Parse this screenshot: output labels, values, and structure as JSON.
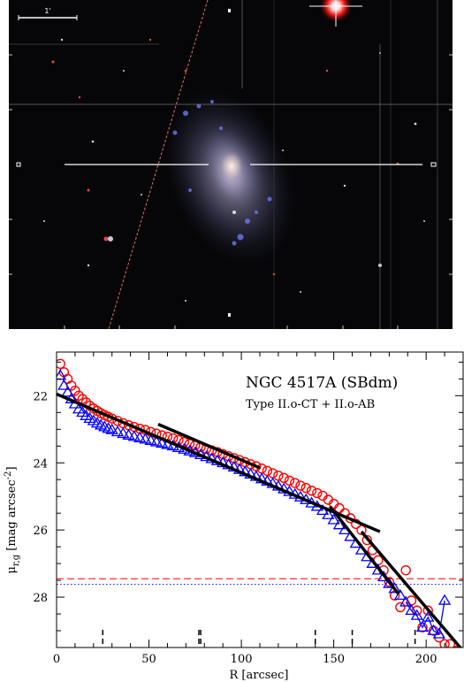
{
  "image_panel": {
    "scale_bar_label": "1'"
  },
  "chart_data": {
    "type": "scatter",
    "title": "NGC 4517A (SBdm)",
    "subtitle": "Type II.o-CT + II.o-AB",
    "xlabel": "R [arcsec]",
    "ylabel": "μ_r,g [mag arcsec^-2]",
    "ylabel_parts": {
      "main": "μ",
      "sub": "r,g",
      "bracket_open": "[mag arcsec",
      "sup": "-2",
      "bracket_close": "]"
    },
    "xlim": [
      0,
      220
    ],
    "ylim": [
      29.5,
      20.7
    ],
    "y_inverted": true,
    "grid": false,
    "x_ticks": [
      0,
      50,
      100,
      150,
      200
    ],
    "y_ticks": [
      22,
      24,
      26,
      28
    ],
    "colors": {
      "r_band": "#ff0000",
      "g_band": "#0000ff",
      "fit": "#000000"
    },
    "series": [
      {
        "marker": "circle",
        "color": "#ff0000",
        "x": [
          2,
          4,
          6,
          8,
          10,
          12,
          14,
          16,
          18,
          20,
          22,
          24,
          26,
          28,
          30,
          33,
          36,
          39,
          42,
          45,
          48,
          51,
          54,
          57,
          60,
          63,
          66,
          69,
          72,
          75,
          78,
          81,
          84,
          87,
          90,
          93,
          96,
          99,
          102,
          105,
          108,
          111,
          114,
          117,
          120,
          123,
          126,
          129,
          132,
          135,
          138,
          141,
          144,
          147,
          150,
          153,
          156,
          159,
          162,
          165,
          168,
          171,
          174,
          177,
          180,
          183,
          186,
          189,
          192,
          195,
          198,
          201,
          204,
          207,
          210,
          213,
          216
        ],
        "y": [
          21.05,
          21.3,
          21.5,
          21.7,
          21.85,
          22.0,
          22.1,
          22.2,
          22.3,
          22.38,
          22.45,
          22.52,
          22.58,
          22.63,
          22.68,
          22.75,
          22.82,
          22.88,
          22.93,
          22.98,
          23.02,
          23.08,
          23.13,
          23.18,
          23.22,
          23.27,
          23.32,
          23.38,
          23.43,
          23.48,
          23.53,
          23.58,
          23.63,
          23.68,
          23.74,
          23.8,
          23.86,
          23.92,
          23.98,
          24.04,
          24.1,
          24.17,
          24.24,
          24.31,
          24.38,
          24.45,
          24.53,
          24.6,
          24.68,
          24.75,
          24.83,
          24.9,
          24.98,
          25.1,
          25.22,
          25.35,
          25.5,
          25.65,
          25.82,
          26.0,
          26.3,
          26.6,
          26.9,
          27.2,
          27.55,
          27.95,
          28.3,
          27.2,
          28.1,
          28.4,
          28.9,
          28.4,
          29.0,
          29.2,
          29.4,
          29.4,
          29.6
        ]
      },
      {
        "marker": "triangle",
        "color": "#0000ff",
        "x": [
          2,
          4,
          6,
          8,
          10,
          12,
          14,
          16,
          18,
          20,
          22,
          24,
          26,
          28,
          30,
          33,
          36,
          39,
          42,
          45,
          48,
          51,
          54,
          57,
          60,
          63,
          66,
          69,
          72,
          75,
          78,
          81,
          84,
          87,
          90,
          93,
          96,
          99,
          102,
          105,
          108,
          111,
          114,
          117,
          120,
          123,
          126,
          129,
          132,
          135,
          138,
          141,
          144,
          147,
          150,
          153,
          156,
          159,
          162,
          165,
          168,
          171,
          174,
          177,
          180,
          183,
          186,
          189,
          192,
          195,
          198,
          201,
          204,
          207,
          210
        ],
        "y": [
          21.4,
          21.7,
          21.9,
          22.1,
          22.25,
          22.4,
          22.5,
          22.6,
          22.68,
          22.75,
          22.82,
          22.88,
          22.93,
          22.98,
          23.02,
          23.08,
          23.13,
          23.18,
          23.22,
          23.26,
          23.3,
          23.34,
          23.38,
          23.42,
          23.46,
          23.5,
          23.55,
          23.6,
          23.65,
          23.7,
          23.76,
          23.82,
          23.88,
          23.94,
          24.0,
          24.06,
          24.13,
          24.2,
          24.27,
          24.34,
          24.41,
          24.48,
          24.55,
          24.62,
          24.7,
          24.78,
          24.86,
          24.94,
          25.02,
          25.1,
          25.2,
          25.3,
          25.42,
          25.55,
          25.7,
          25.85,
          26.0,
          26.2,
          26.4,
          26.6,
          26.8,
          27.0,
          27.2,
          27.4,
          27.6,
          27.75,
          27.95,
          28.15,
          28.4,
          28.55,
          28.9,
          28.6,
          29.0,
          29.1,
          28.1
        ]
      }
    ],
    "fit_lines": [
      {
        "x": [
          0,
          175
        ],
        "y": [
          21.95,
          26.05
        ]
      },
      {
        "x": [
          55,
          110
        ],
        "y": [
          22.85,
          24.15
        ]
      },
      {
        "x": [
          165,
          220
        ],
        "y": [
          26.05,
          29.6
        ]
      },
      {
        "x": [
          148,
          185
        ],
        "y": [
          25.3,
          27.9
        ]
      }
    ],
    "limit_lines": [
      {
        "style": "dashed",
        "color": "#ff0000",
        "y": 27.45
      },
      {
        "style": "dotted",
        "color": "#0000ff",
        "y": 27.62
      }
    ],
    "bottom_markers_x": [
      25,
      77,
      78,
      140,
      160,
      194
    ]
  }
}
